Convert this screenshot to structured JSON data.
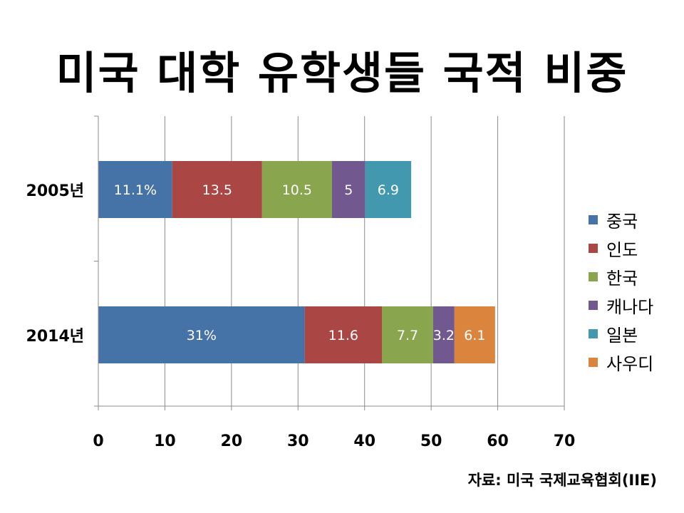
{
  "title": "미국 대학 유학생들 국적 비중",
  "source": "자료: 미국 국제교육협회(IIE)",
  "chart_data": {
    "type": "bar",
    "orientation": "horizontal",
    "stacked": true,
    "title": "미국 대학 유학생들 국적 비중",
    "categories": [
      "2005년",
      "2014년"
    ],
    "series": [
      {
        "name": "중국",
        "color": "#4572A7",
        "values": [
          11.1,
          31
        ],
        "labels": [
          "11.1%",
          "31%"
        ]
      },
      {
        "name": "인도",
        "color": "#AA4643",
        "values": [
          13.5,
          11.6
        ],
        "labels": [
          "13.5",
          "11.6"
        ]
      },
      {
        "name": "한국",
        "color": "#89A54E",
        "values": [
          10.5,
          7.7
        ],
        "labels": [
          "10.5",
          "7.7"
        ]
      },
      {
        "name": "캐나다",
        "color": "#71588F",
        "values": [
          5,
          3.2
        ],
        "labels": [
          "5",
          "3.2"
        ]
      },
      {
        "name": "일본",
        "color": "#4198AF",
        "values": [
          6.9,
          null
        ],
        "labels": [
          "6.9",
          ""
        ]
      },
      {
        "name": "사우디",
        "color": "#DB843D",
        "values": [
          null,
          6.1
        ],
        "labels": [
          "",
          "6.1"
        ]
      }
    ],
    "xlim": [
      0,
      70
    ],
    "xticks": [
      0,
      10,
      20,
      30,
      40,
      50,
      60,
      70
    ],
    "grid": true,
    "legend": "right"
  }
}
